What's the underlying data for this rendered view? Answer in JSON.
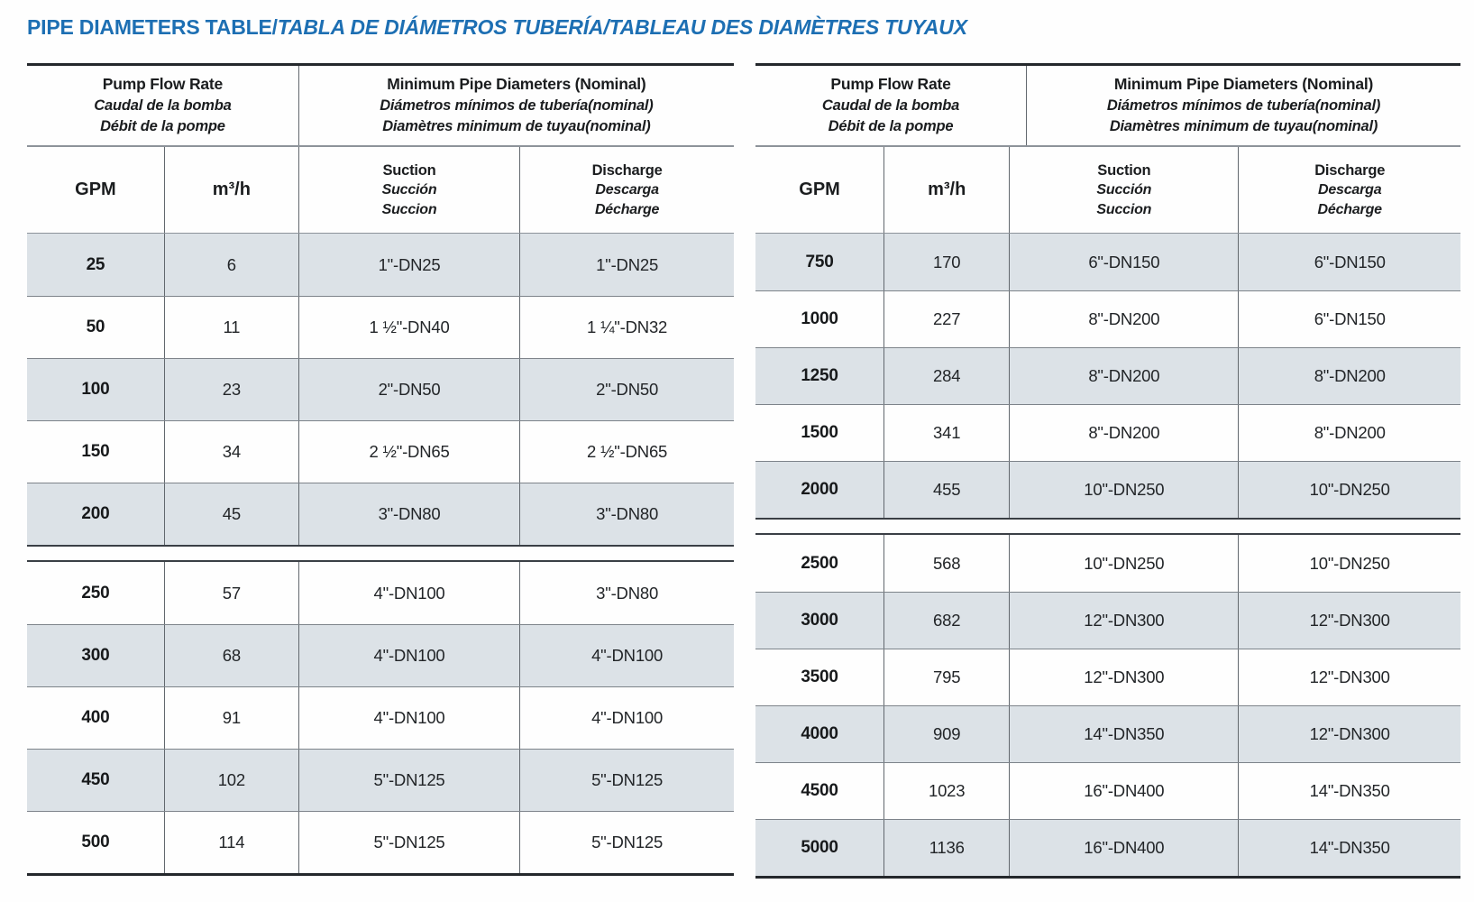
{
  "page": {
    "title_main": "PIPE DIAMETERS TABLE/",
    "title_italic": "TABLA DE DIÁMETROS TUBERÍA/TABLEAU DES DIAMÈTRES TUYAUX"
  },
  "colors": {
    "title_blue": "#1d6fb3",
    "row_shade": "#dce2e7"
  },
  "headers": {
    "pump_flow": {
      "en": "Pump Flow Rate",
      "es": "Caudal de la bomba",
      "fr": "Débit de la pompe"
    },
    "min_pipe": {
      "en": "Minimum Pipe Diameters (Nominal)",
      "es": "Diámetros mínimos de tubería(nominal)",
      "fr": "Diamètres minimum de tuyau(nominal)"
    },
    "columns": {
      "gpm": "GPM",
      "m3h": "m³/h",
      "suction": {
        "en": "Suction",
        "es": "Succión",
        "fr": "Succion"
      },
      "discharge": {
        "en": "Discharge",
        "es": "Descarga",
        "fr": "Décharge"
      }
    }
  },
  "left_table": {
    "sections": [
      {
        "rows": [
          {
            "gpm": "25",
            "m3h": "6",
            "suction": "1\"-DN25",
            "discharge": "1\"-DN25"
          },
          {
            "gpm": "50",
            "m3h": "11",
            "suction": "1 ½\"-DN40",
            "discharge": "1 ¼\"-DN32"
          },
          {
            "gpm": "100",
            "m3h": "23",
            "suction": "2\"-DN50",
            "discharge": "2\"-DN50"
          },
          {
            "gpm": "150",
            "m3h": "34",
            "suction": "2 ½\"-DN65",
            "discharge": "2 ½\"-DN65"
          },
          {
            "gpm": "200",
            "m3h": "45",
            "suction": "3\"-DN80",
            "discharge": "3\"-DN80"
          }
        ]
      },
      {
        "rows": [
          {
            "gpm": "250",
            "m3h": "57",
            "suction": "4\"-DN100",
            "discharge": "3\"-DN80"
          },
          {
            "gpm": "300",
            "m3h": "68",
            "suction": "4\"-DN100",
            "discharge": "4\"-DN100"
          },
          {
            "gpm": "400",
            "m3h": "91",
            "suction": "4\"-DN100",
            "discharge": "4\"-DN100"
          },
          {
            "gpm": "450",
            "m3h": "102",
            "suction": "5\"-DN125",
            "discharge": "5\"-DN125"
          },
          {
            "gpm": "500",
            "m3h": "114",
            "suction": "5\"-DN125",
            "discharge": "5\"-DN125"
          }
        ]
      }
    ]
  },
  "right_table": {
    "sections": [
      {
        "rows": [
          {
            "gpm": "750",
            "m3h": "170",
            "suction": "6\"-DN150",
            "discharge": "6\"-DN150"
          },
          {
            "gpm": "1000",
            "m3h": "227",
            "suction": "8\"-DN200",
            "discharge": "6\"-DN150"
          },
          {
            "gpm": "1250",
            "m3h": "284",
            "suction": "8\"-DN200",
            "discharge": "8\"-DN200"
          },
          {
            "gpm": "1500",
            "m3h": "341",
            "suction": "8\"-DN200",
            "discharge": "8\"-DN200"
          },
          {
            "gpm": "2000",
            "m3h": "455",
            "suction": "10\"-DN250",
            "discharge": "10\"-DN250"
          }
        ]
      },
      {
        "rows": [
          {
            "gpm": "2500",
            "m3h": "568",
            "suction": "10\"-DN250",
            "discharge": "10\"-DN250"
          },
          {
            "gpm": "3000",
            "m3h": "682",
            "suction": "12\"-DN300",
            "discharge": "12\"-DN300"
          },
          {
            "gpm": "3500",
            "m3h": "795",
            "suction": "12\"-DN300",
            "discharge": "12\"-DN300"
          },
          {
            "gpm": "4000",
            "m3h": "909",
            "suction": "14\"-DN350",
            "discharge": "12\"-DN300"
          },
          {
            "gpm": "4500",
            "m3h": "1023",
            "suction": "16\"-DN400",
            "discharge": "14\"-DN350"
          },
          {
            "gpm": "5000",
            "m3h": "1136",
            "suction": "16\"-DN400",
            "discharge": "14\"-DN350"
          }
        ]
      }
    ]
  }
}
